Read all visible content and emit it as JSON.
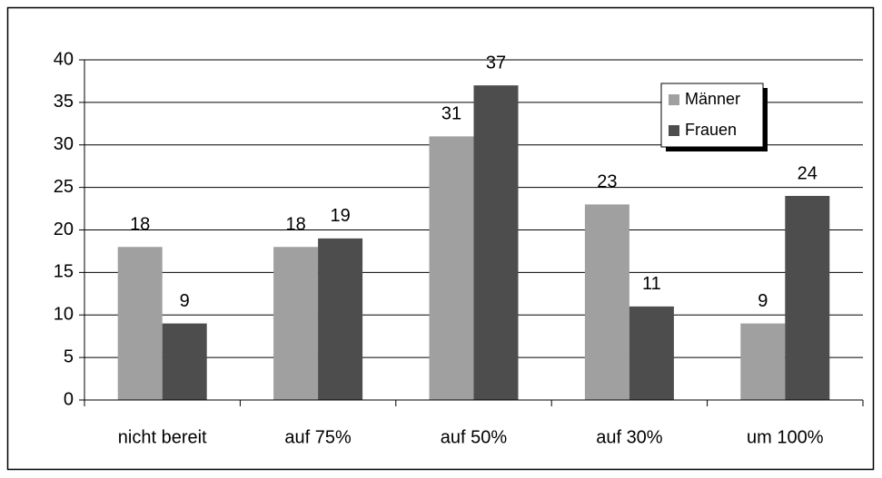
{
  "chart_data": {
    "type": "bar",
    "categories": [
      "nicht bereit",
      "auf 75%",
      "auf 50%",
      "auf 30%",
      "um 100%"
    ],
    "series": [
      {
        "name": "Männer",
        "color": "#a0a0a0",
        "values": [
          18,
          18,
          31,
          23,
          9
        ]
      },
      {
        "name": "Frauen",
        "color": "#4d4d4d",
        "values": [
          9,
          19,
          37,
          11,
          24
        ]
      }
    ],
    "ylim": [
      0,
      40
    ],
    "yticks": [
      0,
      5,
      10,
      15,
      20,
      25,
      30,
      35,
      40
    ],
    "grid": true,
    "legend": "top-right"
  }
}
